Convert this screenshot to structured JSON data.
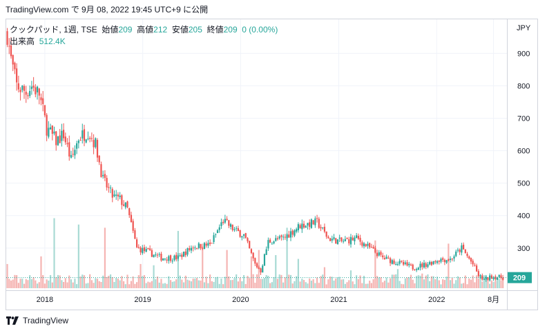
{
  "header": {
    "attribution": "TradingView.com で 9月 08, 2022 19:45 UTC+9 に公開"
  },
  "legend": {
    "symbol": "クックパッド, 1週, TSE",
    "open_label": "始値",
    "open": "209",
    "high_label": "高値",
    "high": "212",
    "low_label": "安値",
    "low": "205",
    "close_label": "終値",
    "close": "209",
    "change": "0 (0.00%)",
    "volume_label": "出来高",
    "volume": "512.4K"
  },
  "footer": {
    "brand": "TradingView"
  },
  "colors": {
    "up": "#26a69a",
    "down": "#ef5350",
    "badge": "#26a69a",
    "text": "#131722"
  },
  "chart_data": {
    "type": "candlestick",
    "currency": "JPY",
    "y_ticks": [
      "900",
      "800",
      "700",
      "600",
      "500",
      "400",
      "300"
    ],
    "y_ticks_values": [
      900,
      800,
      700,
      600,
      500,
      400,
      300
    ],
    "ylim": [
      170,
      1005
    ],
    "x_ticks": [
      "2018",
      "2019",
      "2020",
      "2021",
      "2022",
      "8月"
    ],
    "x_tick_dates": [
      "2018-01-01",
      "2019-01-01",
      "2020-01-01",
      "2021-01-01",
      "2022-01-01",
      "2022-08-01"
    ],
    "x_range": [
      "2017-08-10",
      "2022-09-20"
    ],
    "last_price_label": "209",
    "last_price": 209,
    "close_path": [
      [
        "2017-08-14",
        960
      ],
      [
        "2017-08-28",
        880
      ],
      [
        "2017-09-18",
        800
      ],
      [
        "2017-10-23",
        780
      ],
      [
        "2017-11-13",
        800
      ],
      [
        "2017-12-11",
        775
      ],
      [
        "2018-01-08",
        670
      ],
      [
        "2018-02-12",
        630
      ],
      [
        "2018-03-12",
        650
      ],
      [
        "2018-04-09",
        570
      ],
      [
        "2018-05-07",
        640
      ],
      [
        "2018-06-11",
        660
      ],
      [
        "2018-07-09",
        620
      ],
      [
        "2018-08-06",
        510
      ],
      [
        "2018-09-10",
        460
      ],
      [
        "2018-10-08",
        450
      ],
      [
        "2018-11-05",
        420
      ],
      [
        "2018-12-10",
        300
      ],
      [
        "2019-01-14",
        290
      ],
      [
        "2019-03-11",
        270
      ],
      [
        "2019-05-13",
        270
      ],
      [
        "2019-07-08",
        305
      ],
      [
        "2019-09-09",
        310
      ],
      [
        "2019-10-28",
        385
      ],
      [
        "2019-12-09",
        355
      ],
      [
        "2020-01-13",
        340
      ],
      [
        "2020-02-24",
        250
      ],
      [
        "2020-03-16",
        230
      ],
      [
        "2020-04-13",
        320
      ],
      [
        "2020-06-08",
        330
      ],
      [
        "2020-08-10",
        370
      ],
      [
        "2020-10-12",
        380
      ],
      [
        "2020-11-23",
        330
      ],
      [
        "2021-01-11",
        320
      ],
      [
        "2021-03-08",
        330
      ],
      [
        "2021-04-26",
        300
      ],
      [
        "2021-06-14",
        270
      ],
      [
        "2021-08-09",
        255
      ],
      [
        "2021-10-04",
        240
      ],
      [
        "2021-11-22",
        250
      ],
      [
        "2022-01-10",
        265
      ],
      [
        "2022-02-21",
        265
      ],
      [
        "2022-04-04",
        300
      ],
      [
        "2022-05-16",
        250
      ],
      [
        "2022-06-06",
        215
      ],
      [
        "2022-06-27",
        202
      ],
      [
        "2022-07-25",
        212
      ],
      [
        "2022-09-05",
        209
      ]
    ],
    "volume_ylim": [
      0,
      1300000
    ],
    "volume_spikes": [
      [
        "2017-08-14",
        380000
      ],
      [
        "2017-12-18",
        500000
      ],
      [
        "2018-02-05",
        1100000
      ],
      [
        "2018-05-07",
        1000000
      ],
      [
        "2018-08-13",
        950000
      ],
      [
        "2018-12-24",
        380000
      ],
      [
        "2019-02-11",
        360000
      ],
      [
        "2019-05-13",
        900000
      ],
      [
        "2019-08-12",
        700000
      ],
      [
        "2019-11-11",
        600000
      ],
      [
        "2020-02-10",
        500000
      ],
      [
        "2020-03-09",
        600000
      ],
      [
        "2020-05-11",
        520000
      ],
      [
        "2020-06-22",
        950000
      ],
      [
        "2020-08-03",
        460000
      ],
      [
        "2020-11-09",
        330000
      ],
      [
        "2021-02-15",
        280000
      ],
      [
        "2021-05-17",
        750000
      ],
      [
        "2021-08-09",
        300000
      ],
      [
        "2021-11-08",
        230000
      ],
      [
        "2022-02-14",
        700000
      ],
      [
        "2022-05-16",
        200000
      ],
      [
        "2022-08-08",
        110000
      ]
    ]
  }
}
